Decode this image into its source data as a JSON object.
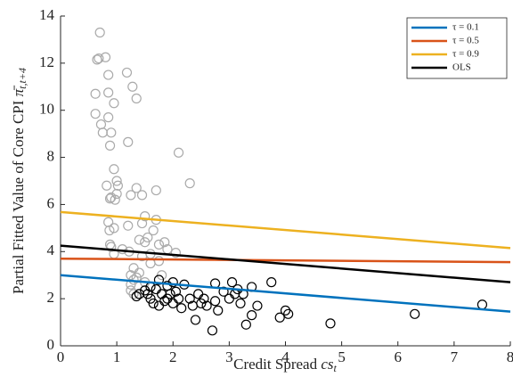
{
  "chart_data": {
    "type": "scatter",
    "xlabel": "Credit Spread ",
    "xlabel_italic": "cs",
    "xlabel_subscript": "t",
    "ylabel": "Partial Fitted Value of Core CPI ",
    "ylabel_symbol": "π̄",
    "ylabel_subscript": "t,t+4",
    "xlim": [
      0,
      8
    ],
    "xticks": [
      0,
      1,
      2,
      3,
      4,
      5,
      6,
      7,
      8
    ],
    "ylim": [
      0,
      14
    ],
    "yticks": [
      0,
      2,
      4,
      6,
      8,
      10,
      12,
      14
    ],
    "grid": false,
    "legend": "upper right",
    "series": [
      {
        "mode": "points",
        "color": "#aaaaaa",
        "x": [
          0.62,
          0.62,
          0.65,
          0.68,
          0.7,
          0.72,
          0.75,
          0.8,
          0.82,
          0.85,
          0.85,
          0.85,
          0.88,
          0.88,
          0.9,
          0.9,
          0.95,
          0.95,
          0.97,
          1.0,
          1.0,
          1.02,
          0.85,
          0.87,
          0.88,
          0.9,
          0.95,
          0.95,
          1.1,
          1.18,
          1.2,
          1.28,
          1.35,
          1.25,
          1.35,
          1.45,
          1.2,
          1.22,
          1.25,
          1.25,
          1.25,
          1.3,
          1.3,
          1.35,
          1.4,
          1.45,
          1.45,
          1.5,
          1.5,
          1.55,
          1.6,
          1.6,
          1.65,
          1.7,
          1.7,
          1.75,
          1.75,
          1.8,
          1.85,
          1.9,
          2.05,
          2.1,
          2.3,
          1.3,
          1.4,
          1.5
        ],
        "values": [
          10.7,
          9.85,
          12.15,
          12.2,
          13.3,
          9.4,
          9.05,
          12.25,
          6.8,
          11.5,
          10.75,
          9.7,
          8.5,
          6.25,
          9.05,
          6.3,
          10.3,
          7.5,
          6.2,
          7.0,
          6.45,
          6.8,
          5.25,
          4.9,
          4.3,
          4.2,
          5.0,
          3.9,
          4.1,
          11.6,
          8.65,
          11.0,
          10.5,
          6.4,
          6.7,
          6.4,
          5.1,
          4.0,
          3.0,
          2.6,
          2.35,
          3.3,
          2.2,
          2.9,
          4.5,
          5.2,
          3.8,
          5.5,
          4.4,
          4.6,
          3.9,
          3.5,
          4.9,
          6.6,
          5.35,
          4.3,
          3.6,
          3.0,
          4.4,
          4.1,
          3.95,
          8.2,
          6.9,
          2.8,
          3.1,
          2.7
        ]
      },
      {
        "mode": "points",
        "color": "#000000",
        "x": [
          1.35,
          1.4,
          1.5,
          1.55,
          1.6,
          1.6,
          1.65,
          1.7,
          1.75,
          1.75,
          1.8,
          1.85,
          1.9,
          1.9,
          1.95,
          2.0,
          2.0,
          2.05,
          2.1,
          2.15,
          2.2,
          2.3,
          2.35,
          2.4,
          2.45,
          2.5,
          2.55,
          2.6,
          2.7,
          2.75,
          2.75,
          2.8,
          2.9,
          3.0,
          3.05,
          3.1,
          3.15,
          3.2,
          3.25,
          3.3,
          3.4,
          3.4,
          3.5,
          3.75,
          3.9,
          4.0,
          4.05,
          4.8,
          6.3,
          7.5
        ],
        "values": [
          2.1,
          2.2,
          2.35,
          2.2,
          2.5,
          2.0,
          1.8,
          2.4,
          2.8,
          1.7,
          2.2,
          1.9,
          2.55,
          2.0,
          2.2,
          2.7,
          1.8,
          2.3,
          2.0,
          1.6,
          2.6,
          2.0,
          1.7,
          1.1,
          2.2,
          1.8,
          2.0,
          1.7,
          0.65,
          1.9,
          2.65,
          1.5,
          2.3,
          2.0,
          2.7,
          2.2,
          2.4,
          1.8,
          2.2,
          0.9,
          1.3,
          2.5,
          1.7,
          2.7,
          1.2,
          1.5,
          1.35,
          0.95,
          1.35,
          1.75
        ]
      },
      {
        "mode": "line",
        "name": "τ = 0.1",
        "color": "#0072bd",
        "x": [
          0,
          8
        ],
        "values": [
          3.0,
          1.45
        ]
      },
      {
        "mode": "line",
        "name": "τ = 0.5",
        "color": "#d95319",
        "x": [
          0,
          8
        ],
        "values": [
          3.7,
          3.55
        ]
      },
      {
        "mode": "line",
        "name": "τ = 0.9",
        "color": "#edb120",
        "x": [
          0,
          8
        ],
        "values": [
          5.68,
          4.15
        ]
      },
      {
        "mode": "line",
        "name": "OLS",
        "color": "#000000",
        "x": [
          0,
          8
        ],
        "values": [
          4.25,
          2.7
        ]
      }
    ]
  }
}
